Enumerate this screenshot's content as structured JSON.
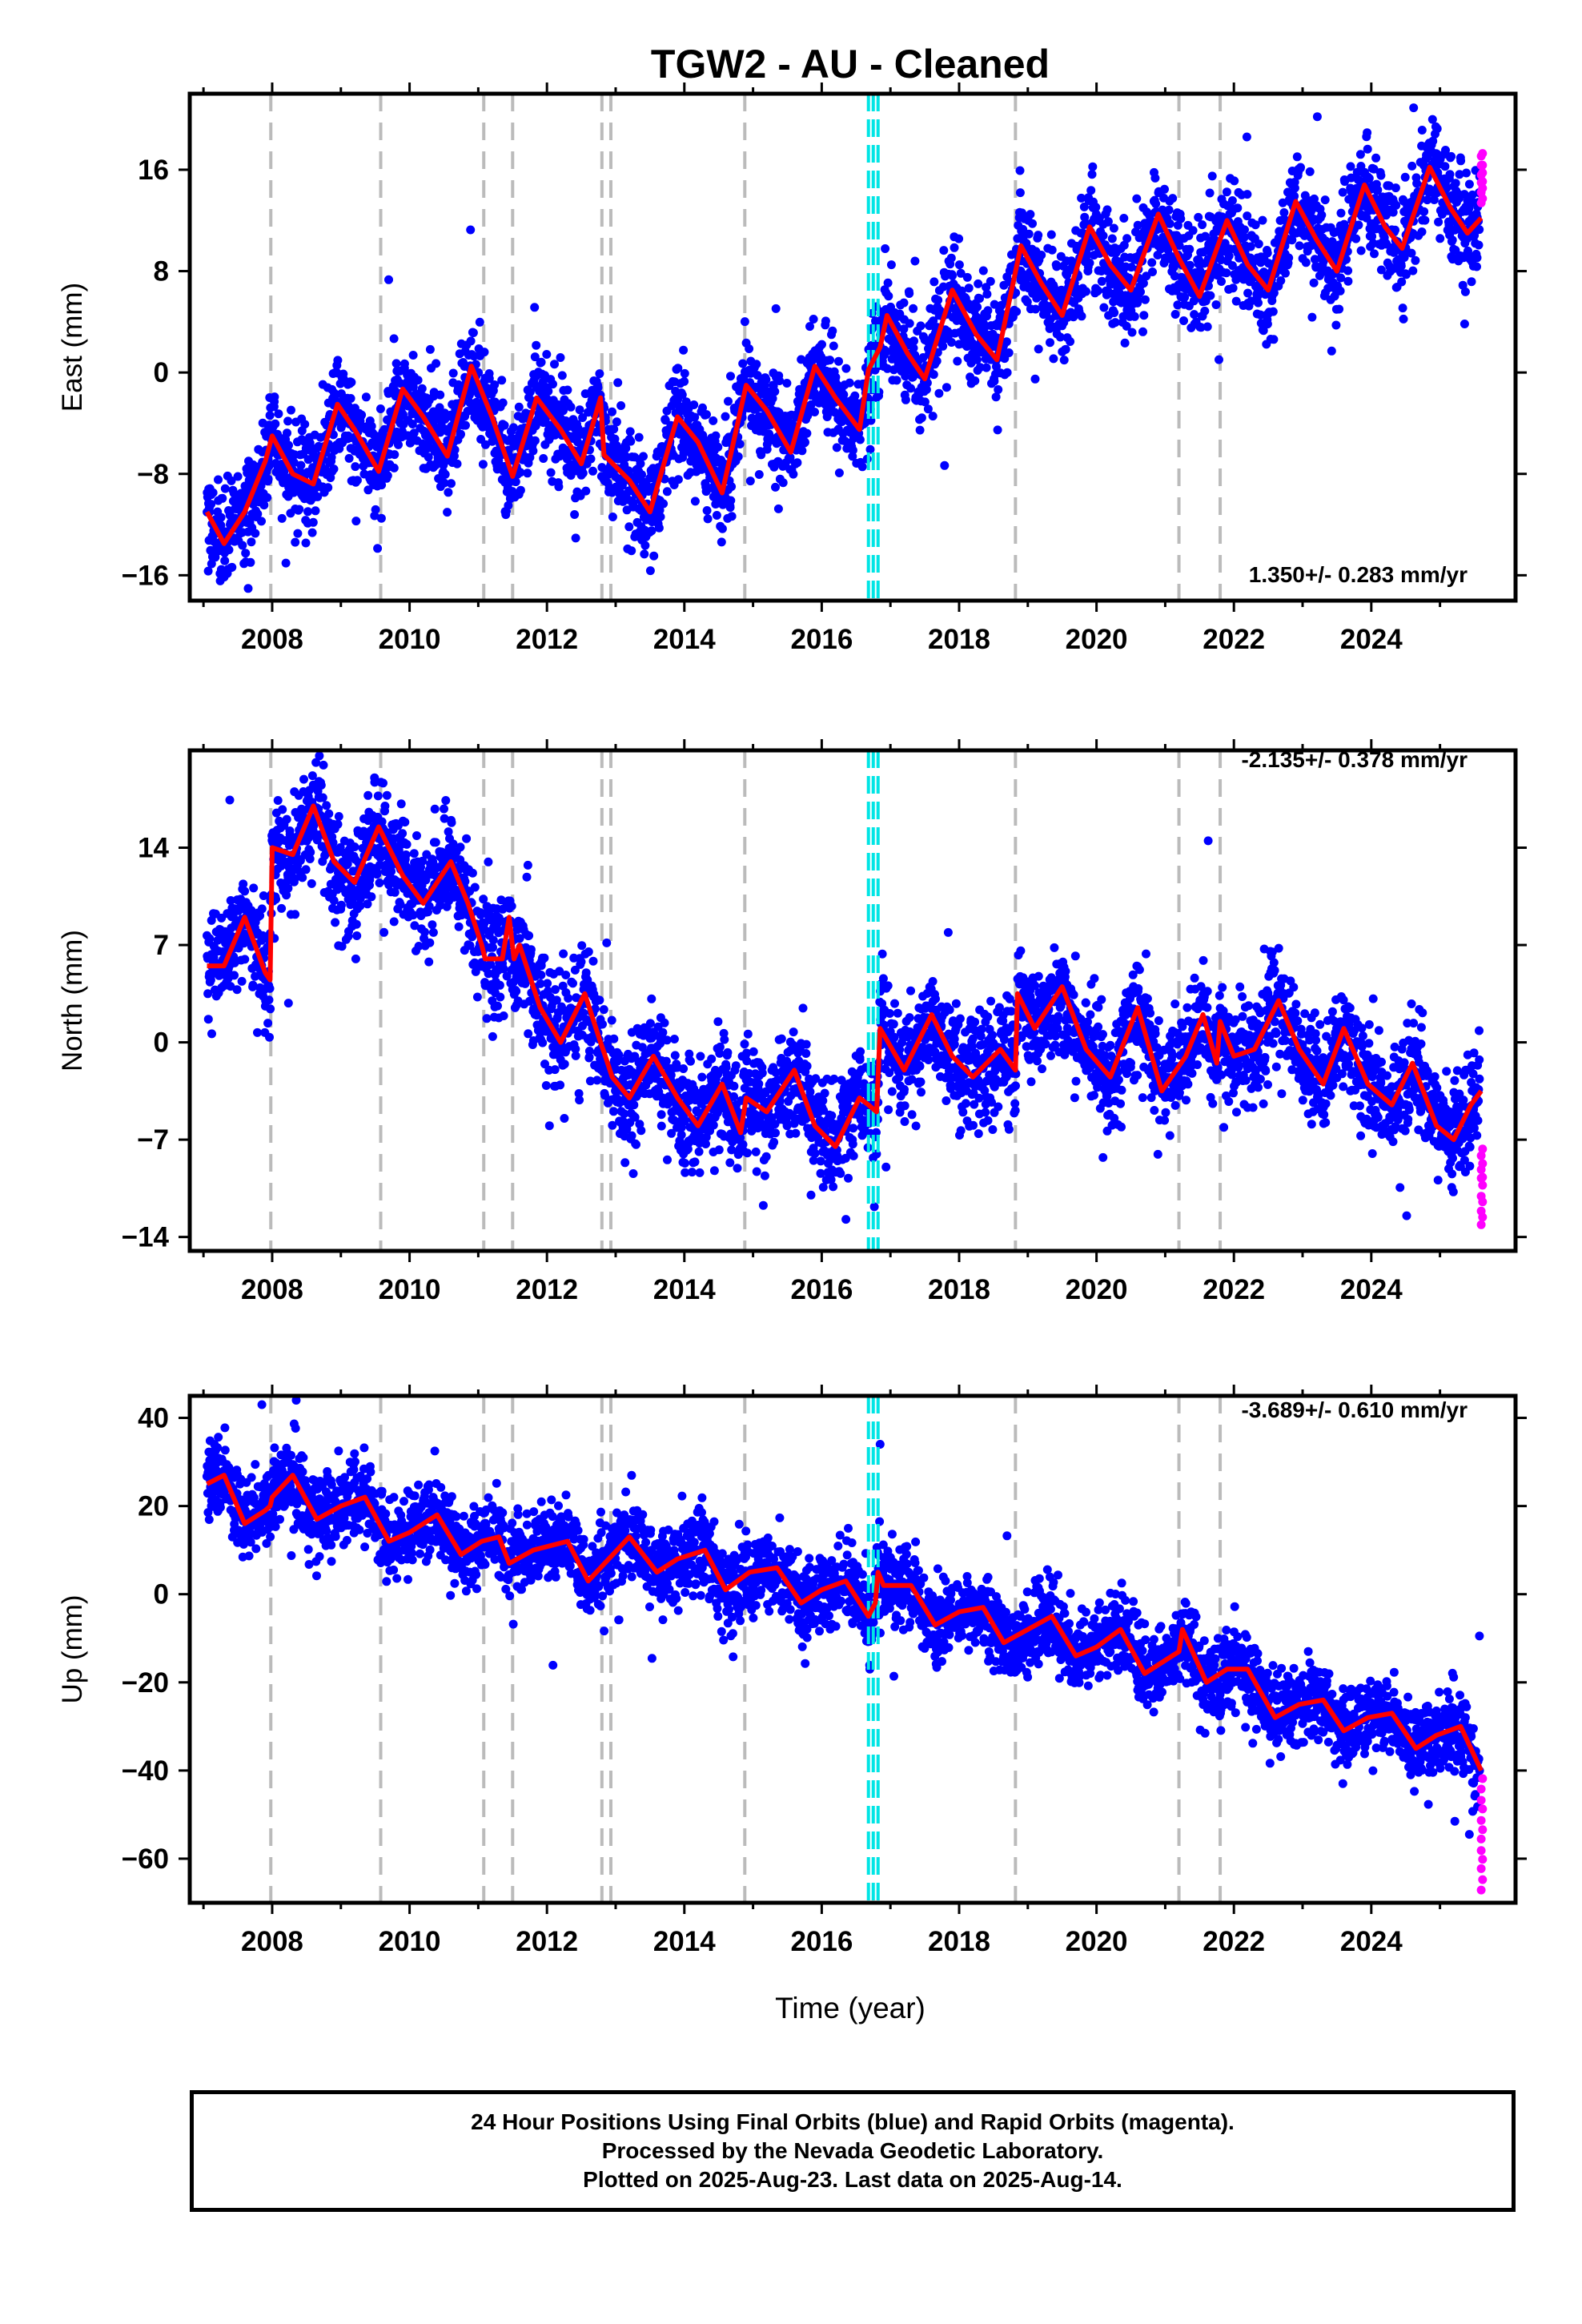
{
  "title": "TGW2  - AU - Cleaned",
  "xlabel": "Time (year)",
  "footer": {
    "line1": "24 Hour Positions Using Final Orbits (blue) and Rapid Orbits (magenta).",
    "line2": "Processed by the Nevada Geodetic Laboratory.",
    "line3": "Plotted on 2025-Aug-23. Last data on 2025-Aug-14."
  },
  "colors": {
    "final_orbits": "#0000ff",
    "rapid_orbits": "#ff00ff",
    "model": "#ff0000",
    "equipment_change": "#bbbbbb",
    "earthquake": "#00e5e5"
  },
  "chart_data": [
    {
      "type": "scatter",
      "ylabel": "East (mm)",
      "rate_label": "1.350+/- 0.283 mm/yr",
      "xlim": [
        2006.8,
        2026.1
      ],
      "ylim": [
        -18,
        22
      ],
      "xticks": [
        2008,
        2010,
        2012,
        2014,
        2016,
        2018,
        2020,
        2022,
        2024
      ],
      "yticks": [
        -16,
        -8,
        0,
        8,
        16
      ],
      "grid": false,
      "model_knots": [
        [
          2007.05,
          -11
        ],
        [
          2007.3,
          -13.5
        ],
        [
          2007.6,
          -11
        ],
        [
          2007.9,
          -7
        ],
        [
          2008.0,
          -5
        ],
        [
          2008.3,
          -8
        ],
        [
          2008.6,
          -8.8
        ],
        [
          2008.95,
          -2.5
        ],
        [
          2009.2,
          -4.5
        ],
        [
          2009.55,
          -7.8
        ],
        [
          2009.9,
          -1.3
        ],
        [
          2010.2,
          -3.5
        ],
        [
          2010.55,
          -6.6
        ],
        [
          2010.9,
          0.5
        ],
        [
          2011.2,
          -3.5
        ],
        [
          2011.5,
          -8.2
        ],
        [
          2011.85,
          -2
        ],
        [
          2012.2,
          -4.5
        ],
        [
          2012.5,
          -7.2
        ],
        [
          2012.78,
          -2
        ],
        [
          2012.83,
          -6.5
        ],
        [
          2013.2,
          -8.5
        ],
        [
          2013.5,
          -11
        ],
        [
          2013.9,
          -3.5
        ],
        [
          2014.2,
          -5.5
        ],
        [
          2014.55,
          -9.5
        ],
        [
          2014.9,
          -1
        ],
        [
          2015.2,
          -3
        ],
        [
          2015.55,
          -6.3
        ],
        [
          2015.9,
          0.5
        ],
        [
          2016.2,
          -2
        ],
        [
          2016.55,
          -4.5
        ],
        [
          2016.68,
          0.2
        ],
        [
          2016.85,
          2
        ],
        [
          2016.95,
          4.5
        ],
        [
          2017.25,
          1.5
        ],
        [
          2017.5,
          -0.5
        ],
        [
          2017.9,
          6.5
        ],
        [
          2018.25,
          3
        ],
        [
          2018.55,
          1
        ],
        [
          2018.9,
          10
        ],
        [
          2019.2,
          7
        ],
        [
          2019.5,
          4.5
        ],
        [
          2019.9,
          11.5
        ],
        [
          2020.2,
          8.5
        ],
        [
          2020.5,
          6.5
        ],
        [
          2020.9,
          12.5
        ],
        [
          2021.2,
          9
        ],
        [
          2021.5,
          6
        ],
        [
          2021.9,
          12
        ],
        [
          2022.2,
          8.5
        ],
        [
          2022.5,
          6.5
        ],
        [
          2022.9,
          13.5
        ],
        [
          2023.2,
          10.5
        ],
        [
          2023.5,
          8
        ],
        [
          2023.9,
          14.8
        ],
        [
          2024.2,
          11.5
        ],
        [
          2024.45,
          9.8
        ],
        [
          2024.85,
          16.2
        ],
        [
          2025.15,
          13
        ],
        [
          2025.4,
          11
        ],
        [
          2025.6,
          12.2
        ]
      ],
      "rapid_orbits": {
        "x": [
          2025.6,
          2025.62
        ],
        "y": [
          13.5,
          17.3
        ]
      }
    },
    {
      "type": "scatter",
      "ylabel": "North (mm)",
      "rate_label": "-2.135+/- 0.378 mm/yr",
      "xlim": [
        2006.8,
        2026.1
      ],
      "ylim": [
        -15,
        21
      ],
      "xticks": [
        2008,
        2010,
        2012,
        2014,
        2016,
        2018,
        2020,
        2022,
        2024
      ],
      "yticks": [
        -14,
        -7,
        0,
        7,
        14
      ],
      "grid": false,
      "model_knots": [
        [
          2007.05,
          5.5
        ],
        [
          2007.3,
          5.5
        ],
        [
          2007.6,
          9
        ],
        [
          2007.9,
          5
        ],
        [
          2007.97,
          4.5
        ],
        [
          2008.0,
          14
        ],
        [
          2008.3,
          13.5
        ],
        [
          2008.6,
          17
        ],
        [
          2008.9,
          13
        ],
        [
          2009.2,
          11.5
        ],
        [
          2009.55,
          15.5
        ],
        [
          2009.9,
          12
        ],
        [
          2010.2,
          10
        ],
        [
          2010.6,
          13
        ],
        [
          2010.85,
          10
        ],
        [
          2011.05,
          7
        ],
        [
          2011.1,
          6
        ],
        [
          2011.35,
          6
        ],
        [
          2011.45,
          9
        ],
        [
          2011.52,
          6
        ],
        [
          2011.6,
          7
        ],
        [
          2011.9,
          2.5
        ],
        [
          2012.2,
          0
        ],
        [
          2012.55,
          3.5
        ],
        [
          2012.78,
          0
        ],
        [
          2012.85,
          -1
        ],
        [
          2012.95,
          -2.5
        ],
        [
          2013.2,
          -4
        ],
        [
          2013.55,
          -1
        ],
        [
          2013.9,
          -4
        ],
        [
          2014.2,
          -6
        ],
        [
          2014.55,
          -3
        ],
        [
          2014.82,
          -6.5
        ],
        [
          2014.9,
          -4
        ],
        [
          2015.2,
          -5
        ],
        [
          2015.6,
          -2
        ],
        [
          2015.9,
          -6
        ],
        [
          2016.2,
          -7.5
        ],
        [
          2016.55,
          -4
        ],
        [
          2016.68,
          -4.5
        ],
        [
          2016.8,
          -5
        ],
        [
          2016.85,
          1
        ],
        [
          2017.2,
          -2
        ],
        [
          2017.6,
          2
        ],
        [
          2017.9,
          -1
        ],
        [
          2018.2,
          -2.5
        ],
        [
          2018.6,
          -0.5
        ],
        [
          2018.82,
          -2
        ],
        [
          2018.85,
          3.5
        ],
        [
          2019.1,
          1
        ],
        [
          2019.5,
          4
        ],
        [
          2019.85,
          -0.5
        ],
        [
          2020.2,
          -2.5
        ],
        [
          2020.6,
          2.5
        ],
        [
          2020.95,
          -3.5
        ],
        [
          2021.3,
          -1
        ],
        [
          2021.55,
          2
        ],
        [
          2021.75,
          -1.5
        ],
        [
          2021.8,
          1.5
        ],
        [
          2022.0,
          -1
        ],
        [
          2022.3,
          -0.5
        ],
        [
          2022.65,
          3
        ],
        [
          2022.95,
          -0.5
        ],
        [
          2023.3,
          -3
        ],
        [
          2023.6,
          1
        ],
        [
          2023.95,
          -3
        ],
        [
          2024.3,
          -4.5
        ],
        [
          2024.6,
          -1.5
        ],
        [
          2024.95,
          -6
        ],
        [
          2025.2,
          -7
        ],
        [
          2025.45,
          -4.5
        ],
        [
          2025.6,
          -3.5
        ]
      ],
      "rapid_orbits": {
        "x": [
          2025.6,
          2025.62
        ],
        "y": [
          -13,
          -7.5
        ]
      }
    },
    {
      "type": "scatter",
      "ylabel": "Up (mm)",
      "rate_label": "-3.689+/- 0.610 mm/yr",
      "xlim": [
        2006.8,
        2026.1
      ],
      "ylim": [
        -70,
        45
      ],
      "xticks": [
        2008,
        2010,
        2012,
        2014,
        2016,
        2018,
        2020,
        2022,
        2024
      ],
      "yticks": [
        -60,
        -40,
        -20,
        0,
        20,
        40
      ],
      "grid": false,
      "model_knots": [
        [
          2007.05,
          25
        ],
        [
          2007.3,
          27
        ],
        [
          2007.6,
          16
        ],
        [
          2007.9,
          19
        ],
        [
          2007.97,
          20
        ],
        [
          2008.0,
          22
        ],
        [
          2008.3,
          27
        ],
        [
          2008.65,
          17
        ],
        [
          2009.0,
          20
        ],
        [
          2009.35,
          22
        ],
        [
          2009.7,
          12
        ],
        [
          2010.0,
          14
        ],
        [
          2010.4,
          18
        ],
        [
          2010.75,
          9
        ],
        [
          2011.05,
          12
        ],
        [
          2011.3,
          13
        ],
        [
          2011.45,
          7
        ],
        [
          2011.8,
          10
        ],
        [
          2012.3,
          12
        ],
        [
          2012.6,
          3
        ],
        [
          2012.9,
          8
        ],
        [
          2013.2,
          13
        ],
        [
          2013.6,
          5
        ],
        [
          2013.9,
          8
        ],
        [
          2014.3,
          10
        ],
        [
          2014.6,
          1
        ],
        [
          2014.95,
          5
        ],
        [
          2015.35,
          6
        ],
        [
          2015.7,
          -2
        ],
        [
          2016.0,
          1
        ],
        [
          2016.35,
          3
        ],
        [
          2016.68,
          -5
        ],
        [
          2016.78,
          -2
        ],
        [
          2016.82,
          5
        ],
        [
          2016.9,
          2
        ],
        [
          2017.3,
          2
        ],
        [
          2017.65,
          -7
        ],
        [
          2018.0,
          -4
        ],
        [
          2018.35,
          -3
        ],
        [
          2018.65,
          -11
        ],
        [
          2019.0,
          -8
        ],
        [
          2019.35,
          -5
        ],
        [
          2019.7,
          -14
        ],
        [
          2020.0,
          -12
        ],
        [
          2020.35,
          -8
        ],
        [
          2020.7,
          -18
        ],
        [
          2021.0,
          -15
        ],
        [
          2021.2,
          -13
        ],
        [
          2021.25,
          -8
        ],
        [
          2021.6,
          -20
        ],
        [
          2021.9,
          -17
        ],
        [
          2022.2,
          -17
        ],
        [
          2022.6,
          -28
        ],
        [
          2022.95,
          -25
        ],
        [
          2023.3,
          -24
        ],
        [
          2023.6,
          -31
        ],
        [
          2023.95,
          -28
        ],
        [
          2024.3,
          -27
        ],
        [
          2024.65,
          -35
        ],
        [
          2024.95,
          -32
        ],
        [
          2025.3,
          -30
        ],
        [
          2025.6,
          -40
        ]
      ],
      "rapid_orbits": {
        "x": [
          2025.6,
          2025.62,
          2025.6,
          2025.62,
          2025.6
        ],
        "y": [
          -42,
          -48,
          -58,
          -65,
          -67
        ]
      },
      "outliers": {
        "x": [
          2007.85,
          2008.35,
          2016.85,
          2016.7
        ],
        "y": [
          43,
          44,
          34,
          -17
        ]
      }
    }
  ],
  "equipment_changes": [
    2007.98,
    2009.58,
    2011.08,
    2011.5,
    2012.8,
    2012.93,
    2014.88,
    2018.82,
    2021.2,
    2021.8
  ],
  "earthquakes": [
    2016.68,
    2016.75,
    2016.82
  ]
}
